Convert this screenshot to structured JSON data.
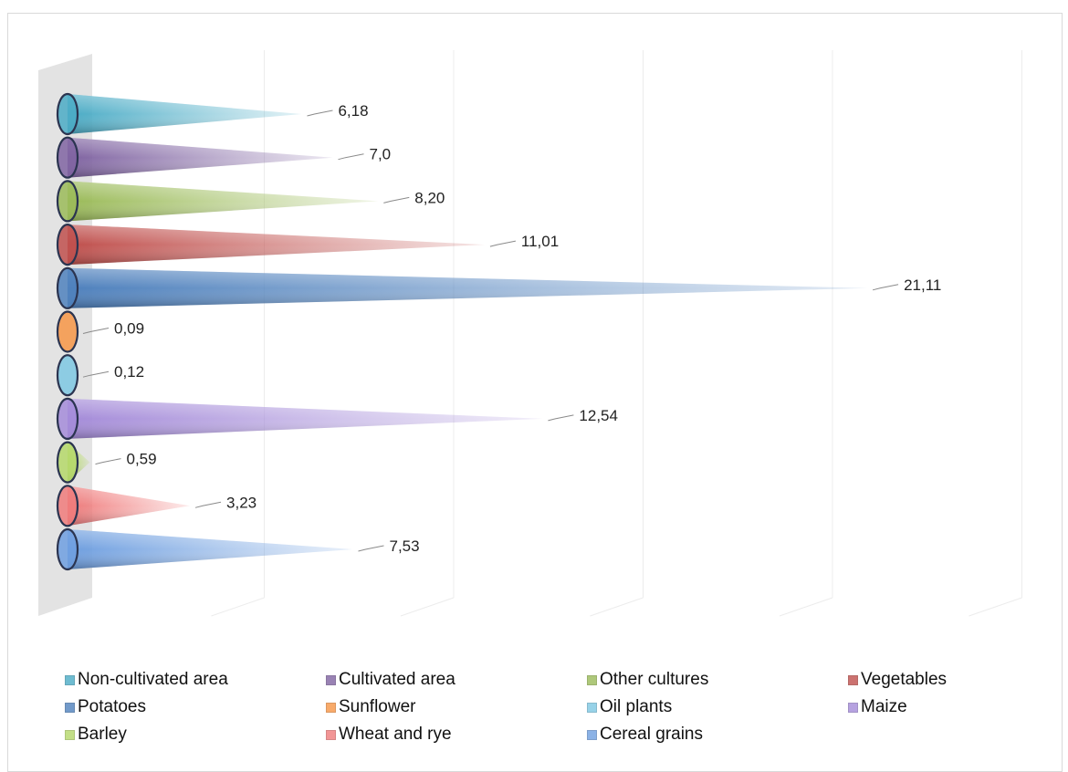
{
  "chart_data": {
    "type": "bar",
    "orientation": "horizontal",
    "style": "3d-cone",
    "categories": [
      "Non-cultivated area",
      "Cultivated area",
      "Other cultures",
      "Vegetables",
      "Potatoes",
      "Sunflower",
      "Oil plants",
      "Maize",
      "Barley",
      "Wheat and rye",
      "Cereal grains"
    ],
    "values": [
      6.18,
      7.0,
      8.2,
      11.01,
      21.11,
      0.09,
      0.12,
      12.54,
      0.59,
      3.23,
      7.53
    ],
    "value_labels": [
      "6,18",
      "7,0",
      "8,20",
      "11,01",
      "21,11",
      "0,09",
      "0,12",
      "12,54",
      "0,59",
      "3,23",
      "7,53"
    ],
    "colors": [
      "#4bacc6",
      "#8064a2",
      "#9bbb59",
      "#c0504d",
      "#4f81bd",
      "#f79646",
      "#7ec8e3",
      "#a58cd9",
      "#b5d86a",
      "#f07b7b",
      "#6f9fe0"
    ],
    "xlim": [
      0,
      25
    ],
    "gridlines": true,
    "legend_position": "bottom",
    "title": "",
    "xlabel": "",
    "ylabel": ""
  }
}
